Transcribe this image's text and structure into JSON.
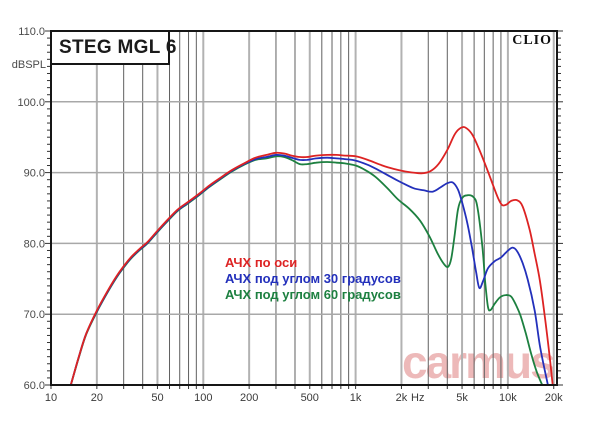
{
  "header": {
    "brand": "CLIO"
  },
  "watermark": {
    "text": "carmus",
    "color": "#dd7676",
    "opacity": 0.5
  },
  "chart_data": {
    "type": "line",
    "title": "STEG MGL 6",
    "x_scale": "log",
    "xlim": [
      10,
      21000
    ],
    "ylim": [
      60,
      110
    ],
    "grid": true,
    "legend_position": "inside-middle-left",
    "y_axis": {
      "label": "dBSPL",
      "ticks": [
        {
          "v": 60,
          "label": "60.0"
        },
        {
          "v": 70,
          "label": "70.0"
        },
        {
          "v": 80,
          "label": "80.0"
        },
        {
          "v": 90,
          "label": "90.0"
        },
        {
          "v": 100,
          "label": "100.0"
        },
        {
          "v": 110,
          "label": "110.0"
        }
      ],
      "minor_step": 1,
      "gridline_values": [
        70,
        80,
        90,
        100
      ]
    },
    "x_axis": {
      "unit": "Hz",
      "labeled_ticks": [
        {
          "f": 10,
          "label": "10"
        },
        {
          "f": 20,
          "label": "20"
        },
        {
          "f": 50,
          "label": "50"
        },
        {
          "f": 100,
          "label": "100"
        },
        {
          "f": 200,
          "label": "200"
        },
        {
          "f": 500,
          "label": "500"
        },
        {
          "f": 1000,
          "label": "1k"
        },
        {
          "f": 2000,
          "label": "2k"
        },
        {
          "f": 5000,
          "label": "5k"
        },
        {
          "f": 10000,
          "label": "10k"
        },
        {
          "f": 20000,
          "label": "20k"
        }
      ],
      "major_gridlines": [
        20,
        50,
        100,
        200,
        500,
        1000,
        2000,
        5000,
        10000,
        20000
      ],
      "minor_gridlines": [
        30,
        40,
        60,
        70,
        80,
        90,
        300,
        400,
        600,
        700,
        800,
        900,
        3000,
        4000,
        6000,
        7000,
        8000,
        9000
      ]
    },
    "colors": {
      "border": "#161616",
      "grid_major": "#b2b2b2",
      "grid_minor": "#606060",
      "grid_horizontal": "#a8a8a8",
      "tick": "#333333"
    },
    "series": [
      {
        "name": "АЧХ под углом 60 градусов",
        "color": "#1d8040",
        "points": [
          [
            13.5,
            60
          ],
          [
            15,
            63.4
          ],
          [
            17,
            67.1
          ],
          [
            20,
            70.3
          ],
          [
            24,
            73.4
          ],
          [
            28,
            75.7
          ],
          [
            33,
            77.7
          ],
          [
            38,
            79.0
          ],
          [
            43,
            80.0
          ],
          [
            50,
            81.6
          ],
          [
            58,
            83.1
          ],
          [
            68,
            84.6
          ],
          [
            80,
            85.7
          ],
          [
            95,
            86.9
          ],
          [
            110,
            88.0
          ],
          [
            130,
            89.1
          ],
          [
            155,
            90.2
          ],
          [
            185,
            91.1
          ],
          [
            220,
            91.8
          ],
          [
            260,
            92.0
          ],
          [
            300,
            92.3
          ],
          [
            340,
            92.2
          ],
          [
            380,
            91.8
          ],
          [
            430,
            91.2
          ],
          [
            480,
            91.2
          ],
          [
            550,
            91.4
          ],
          [
            650,
            91.5
          ],
          [
            750,
            91.4
          ],
          [
            850,
            91.3
          ],
          [
            1000,
            91.0
          ],
          [
            1150,
            90.4
          ],
          [
            1350,
            89.4
          ],
          [
            1600,
            87.9
          ],
          [
            1900,
            86.2
          ],
          [
            2250,
            84.9
          ],
          [
            2650,
            83.2
          ],
          [
            3050,
            81.0
          ],
          [
            3450,
            78.6
          ],
          [
            3800,
            77.1
          ],
          [
            4050,
            76.7
          ],
          [
            4250,
            77.9
          ],
          [
            4450,
            80.8
          ],
          [
            4700,
            84.8
          ],
          [
            5000,
            86.4
          ],
          [
            5400,
            86.8
          ],
          [
            5900,
            86.6
          ],
          [
            6300,
            85.2
          ],
          [
            6800,
            79.5
          ],
          [
            7100,
            74.5
          ],
          [
            7400,
            71.0
          ],
          [
            7700,
            70.6
          ],
          [
            8200,
            71.5
          ],
          [
            8900,
            72.4
          ],
          [
            9700,
            72.7
          ],
          [
            10500,
            72.5
          ],
          [
            11300,
            71.3
          ],
          [
            12100,
            69.8
          ],
          [
            13100,
            67.3
          ],
          [
            14300,
            64.2
          ],
          [
            15500,
            61.8
          ],
          [
            16800,
            60
          ]
        ]
      },
      {
        "name": "АЧХ под углом 30 градусов",
        "color": "#2330bb",
        "points": [
          [
            13.5,
            60
          ],
          [
            15,
            63.5
          ],
          [
            17,
            67.2
          ],
          [
            20,
            70.4
          ],
          [
            24,
            73.5
          ],
          [
            28,
            75.8
          ],
          [
            33,
            77.8
          ],
          [
            38,
            79.1
          ],
          [
            43,
            80.1
          ],
          [
            50,
            81.7
          ],
          [
            58,
            83.2
          ],
          [
            68,
            84.7
          ],
          [
            80,
            85.8
          ],
          [
            95,
            87.0
          ],
          [
            110,
            88.1
          ],
          [
            130,
            89.2
          ],
          [
            155,
            90.3
          ],
          [
            185,
            91.2
          ],
          [
            220,
            91.9
          ],
          [
            260,
            92.2
          ],
          [
            300,
            92.5
          ],
          [
            340,
            92.4
          ],
          [
            380,
            92.1
          ],
          [
            430,
            91.8
          ],
          [
            480,
            91.8
          ],
          [
            550,
            92.0
          ],
          [
            650,
            92.1
          ],
          [
            750,
            92.0
          ],
          [
            850,
            91.9
          ],
          [
            1000,
            91.7
          ],
          [
            1200,
            91.1
          ],
          [
            1400,
            90.4
          ],
          [
            1700,
            89.4
          ],
          [
            2000,
            88.6
          ],
          [
            2400,
            87.8
          ],
          [
            2800,
            87.5
          ],
          [
            3200,
            87.3
          ],
          [
            3600,
            87.9
          ],
          [
            4000,
            88.5
          ],
          [
            4350,
            88.6
          ],
          [
            4700,
            87.6
          ],
          [
            5000,
            85.8
          ],
          [
            5400,
            83.0
          ],
          [
            5800,
            79.5
          ],
          [
            6200,
            75.8
          ],
          [
            6500,
            73.7
          ],
          [
            6900,
            74.8
          ],
          [
            7400,
            76.5
          ],
          [
            8200,
            77.5
          ],
          [
            9000,
            78.0
          ],
          [
            9800,
            78.8
          ],
          [
            10700,
            79.4
          ],
          [
            11500,
            78.9
          ],
          [
            12500,
            77.2
          ],
          [
            13500,
            74.9
          ],
          [
            15000,
            70.5
          ],
          [
            16300,
            65.3
          ],
          [
            18300,
            60
          ]
        ]
      },
      {
        "name": "АЧХ по оси",
        "color": "#dd2323",
        "points": [
          [
            13.5,
            60
          ],
          [
            15,
            63.5
          ],
          [
            17,
            67.2
          ],
          [
            20,
            70.5
          ],
          [
            24,
            73.6
          ],
          [
            28,
            75.9
          ],
          [
            33,
            77.9
          ],
          [
            38,
            79.2
          ],
          [
            43,
            80.2
          ],
          [
            50,
            81.8
          ],
          [
            58,
            83.3
          ],
          [
            68,
            84.8
          ],
          [
            80,
            85.9
          ],
          [
            95,
            87.1
          ],
          [
            110,
            88.2
          ],
          [
            130,
            89.3
          ],
          [
            155,
            90.4
          ],
          [
            185,
            91.3
          ],
          [
            220,
            92.1
          ],
          [
            260,
            92.5
          ],
          [
            300,
            92.8
          ],
          [
            340,
            92.7
          ],
          [
            380,
            92.4
          ],
          [
            430,
            92.2
          ],
          [
            480,
            92.2
          ],
          [
            550,
            92.4
          ],
          [
            650,
            92.5
          ],
          [
            750,
            92.5
          ],
          [
            850,
            92.4
          ],
          [
            1000,
            92.3
          ],
          [
            1200,
            91.8
          ],
          [
            1500,
            91.0
          ],
          [
            1800,
            90.5
          ],
          [
            2200,
            90.1
          ],
          [
            2700,
            89.9
          ],
          [
            3100,
            90.2
          ],
          [
            3500,
            91.2
          ],
          [
            4000,
            93.2
          ],
          [
            4500,
            95.5
          ],
          [
            5000,
            96.4
          ],
          [
            5400,
            96.2
          ],
          [
            5900,
            95.2
          ],
          [
            6500,
            93.2
          ],
          [
            7200,
            90.8
          ],
          [
            8000,
            88.2
          ],
          [
            8700,
            86.2
          ],
          [
            9200,
            85.4
          ],
          [
            9800,
            85.5
          ],
          [
            10500,
            86.0
          ],
          [
            11500,
            86.1
          ],
          [
            12500,
            85.2
          ],
          [
            13900,
            81.9
          ],
          [
            15000,
            78.5
          ],
          [
            16200,
            74.8
          ],
          [
            17400,
            70.0
          ],
          [
            18500,
            65.3
          ],
          [
            19700,
            60
          ]
        ]
      }
    ],
    "legend_order": [
      2,
      1,
      0
    ]
  }
}
